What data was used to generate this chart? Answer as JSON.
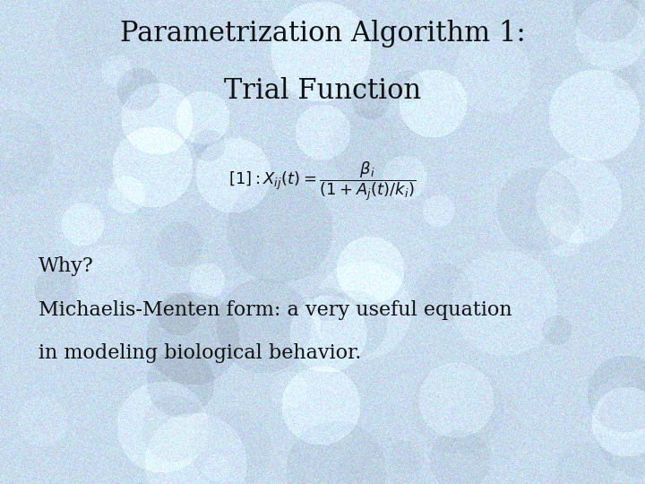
{
  "title_line1": "Parametrization Algorithm 1:",
  "title_line2": "Trial Function",
  "body_line1": "Why?",
  "body_line2": "Michaelis-Menten form: a very useful equation",
  "body_line3": "in modeling biological behavior.",
  "bg_color_base": "#c8dff0",
  "bg_color_light": "#ddeeff",
  "text_color": "#111111",
  "title_fontsize": 22,
  "formula_fontsize": 13,
  "body_fontsize": 16,
  "fig_width": 7.2,
  "fig_height": 5.4
}
